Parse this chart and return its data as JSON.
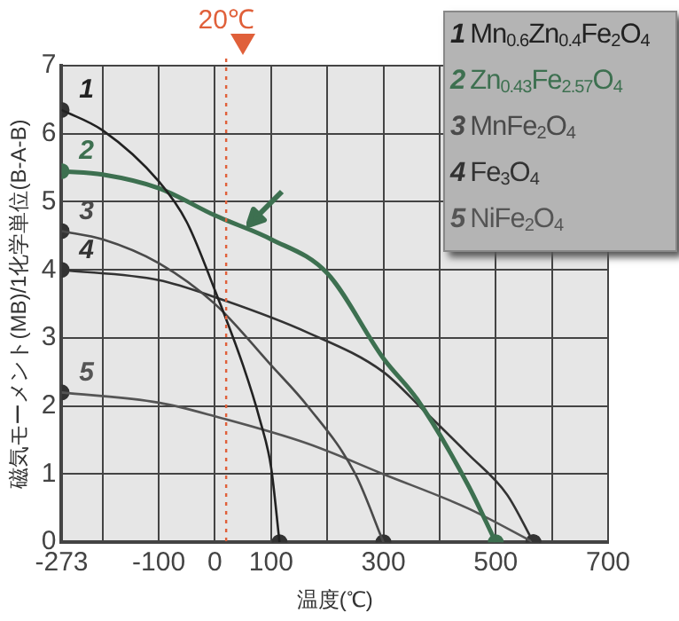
{
  "chart_data": {
    "type": "line",
    "xlabel": "温度(℃)",
    "ylabel": "磁気モーメント(MB)/1化学単位(B-A-B)",
    "xlim": [
      -273,
      700
    ],
    "xticks": [
      -273,
      {
        "value": -200,
        "label": null
      },
      -100,
      0,
      100,
      {
        "value": 200,
        "label": null
      },
      300,
      {
        "value": 400,
        "label": null
      },
      500,
      {
        "value": 600,
        "label": null
      },
      700
    ],
    "ylim": [
      0,
      7
    ],
    "yticks": [
      0,
      1,
      2,
      3,
      4,
      5,
      6,
      7
    ],
    "grid": true,
    "legend": "top right",
    "marker": "none",
    "line_style": "solid",
    "series": [
      {
        "name": "1 Mn$_{0.6}$Zn$_{0.4}$Fe$_{2}$O$_{4}$",
        "color": "#222222",
        "x": [
          -273,
          -200,
          -100,
          -50,
          0,
          50,
          80,
          100,
          115
        ],
        "values": [
          6.35,
          6.05,
          5.3,
          4.7,
          3.7,
          2.6,
          1.8,
          1.1,
          0
        ]
      },
      {
        "name": "2 Zn$_{0.43}$Fe$_{2.57}$O$_{4}$",
        "color": "#3d7050",
        "x": [
          -273,
          -200,
          -100,
          0,
          100,
          200,
          300,
          360,
          450,
          500
        ],
        "values": [
          5.45,
          5.4,
          5.2,
          4.8,
          4.45,
          3.95,
          2.7,
          2.1,
          0.85,
          0
        ]
      },
      {
        "name": "3 MnFe$_{2}$O$_{4}$",
        "color": "#4a4a4a",
        "x": [
          -273,
          -200,
          -100,
          0,
          100,
          165,
          250,
          300
        ],
        "values": [
          4.57,
          4.45,
          4.1,
          3.5,
          2.6,
          2.0,
          1.0,
          0
        ]
      },
      {
        "name": "4 Fe$_{3}$O$_{4}$",
        "color": "#333333",
        "x": [
          -273,
          -100,
          0,
          165,
          300,
          370,
          450,
          520,
          567
        ],
        "values": [
          4.0,
          3.85,
          3.6,
          3.08,
          2.5,
          1.95,
          1.3,
          0.7,
          0
        ]
      },
      {
        "name": "5 NiFe$_{2}$O$_{4}$",
        "color": "#555555",
        "x": [
          -273,
          -100,
          0,
          165,
          300,
          450,
          567
        ],
        "values": [
          2.2,
          2.05,
          1.85,
          1.45,
          1.0,
          0.5,
          0
        ]
      },
      {
        "type": "scatter",
        "marker": "circle",
        "x": [
          -273,
          -273,
          -273,
          -273,
          -273,
          115,
          500,
          300,
          567,
          567
        ],
        "values": [
          6.35,
          5.45,
          4.57,
          4.0,
          2.2,
          0,
          0,
          0,
          0,
          0
        ],
        "colors": [
          "#333333",
          "#3d7050",
          "#333333",
          "#333333",
          "#333333",
          "#333333",
          "#3d7050",
          "#333333",
          "#333333",
          "#333333"
        ]
      }
    ],
    "ref_lines": [
      {
        "axis": "x",
        "value": 20,
        "label": "20℃",
        "color": "#e0603a",
        "line_style": "dotted"
      }
    ],
    "annotations": [
      "1",
      "2",
      "3",
      "4",
      "5"
    ]
  }
}
